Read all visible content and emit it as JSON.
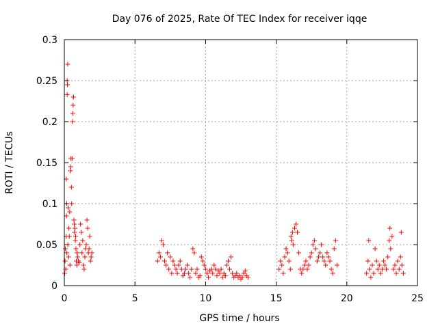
{
  "chart_data": {
    "type": "scatter",
    "title": "Day 076 of 2025, Rate Of TEC Index for receiver iqqe",
    "xlabel": "GPS time / hours",
    "ylabel": "ROTI / TECUs",
    "xlim": [
      0,
      25
    ],
    "ylim": [
      0,
      0.3
    ],
    "xticks": [
      0,
      5,
      10,
      15,
      20,
      25
    ],
    "yticks": [
      0,
      0.05,
      0.1,
      0.15,
      0.2,
      0.25,
      0.3
    ],
    "xtick_labels": [
      "0",
      "5",
      "10",
      "15",
      "20",
      "25"
    ],
    "ytick_labels": [
      "0",
      "0.05",
      "0.1",
      "0.15",
      "0.2",
      "0.25",
      "0.3"
    ],
    "grid": true,
    "marker": "+",
    "color": "#ff0000",
    "series": [
      {
        "points": [
          [
            0.02,
            0.015
          ],
          [
            0.05,
            0.03
          ],
          [
            0.07,
            0.045
          ],
          [
            0.1,
            0.02
          ],
          [
            0.12,
            0.06
          ],
          [
            0.13,
            0.13
          ],
          [
            0.15,
            0.085
          ],
          [
            0.17,
            0.1
          ],
          [
            0.18,
            0.04
          ],
          [
            0.2,
            0.233
          ],
          [
            0.2,
            0.25
          ],
          [
            0.22,
            0.245
          ],
          [
            0.24,
            0.27
          ],
          [
            0.25,
            0.05
          ],
          [
            0.27,
            0.095
          ],
          [
            0.3,
            0.035
          ],
          [
            0.32,
            0.07
          ],
          [
            0.35,
            0.06
          ],
          [
            0.38,
            0.09
          ],
          [
            0.4,
            0.025
          ],
          [
            0.42,
            0.14
          ],
          [
            0.45,
            0.145
          ],
          [
            0.47,
            0.155
          ],
          [
            0.5,
            0.12
          ],
          [
            0.52,
            0.1
          ],
          [
            0.55,
            0.155
          ],
          [
            0.57,
            0.2
          ],
          [
            0.6,
            0.21
          ],
          [
            0.62,
            0.22
          ],
          [
            0.64,
            0.23
          ],
          [
            0.65,
            0.23
          ],
          [
            0.68,
            0.08
          ],
          [
            0.7,
            0.075
          ],
          [
            0.72,
            0.065
          ],
          [
            0.75,
            0.07
          ],
          [
            0.78,
            0.055
          ],
          [
            0.8,
            0.06
          ],
          [
            0.82,
            0.045
          ],
          [
            0.85,
            0.03
          ],
          [
            0.88,
            0.025
          ],
          [
            0.9,
            0.04
          ],
          [
            0.95,
            0.035
          ],
          [
            1.0,
            0.03
          ],
          [
            1.05,
            0.028
          ],
          [
            1.1,
            0.05
          ],
          [
            1.15,
            0.075
          ],
          [
            1.2,
            0.065
          ],
          [
            1.25,
            0.04
          ],
          [
            1.3,
            0.055
          ],
          [
            1.35,
            0.025
          ],
          [
            1.4,
            0.02
          ],
          [
            1.45,
            0.035
          ],
          [
            1.5,
            0.045
          ],
          [
            1.55,
            0.05
          ],
          [
            1.6,
            0.08
          ],
          [
            1.65,
            0.07
          ],
          [
            1.7,
            0.04
          ],
          [
            1.75,
            0.045
          ],
          [
            1.8,
            0.06
          ],
          [
            1.85,
            0.03
          ],
          [
            1.9,
            0.035
          ],
          [
            1.95,
            0.04
          ],
          [
            6.6,
            0.03
          ],
          [
            6.7,
            0.04
          ],
          [
            6.8,
            0.035
          ],
          [
            6.9,
            0.055
          ],
          [
            7.0,
            0.05
          ],
          [
            7.1,
            0.03
          ],
          [
            7.2,
            0.025
          ],
          [
            7.3,
            0.04
          ],
          [
            7.4,
            0.02
          ],
          [
            7.5,
            0.035
          ],
          [
            7.6,
            0.015
          ],
          [
            7.7,
            0.03
          ],
          [
            7.8,
            0.025
          ],
          [
            7.9,
            0.02
          ],
          [
            8.0,
            0.015
          ],
          [
            8.1,
            0.025
          ],
          [
            8.2,
            0.03
          ],
          [
            8.3,
            0.02
          ],
          [
            8.4,
            0.012
          ],
          [
            8.5,
            0.015
          ],
          [
            8.6,
            0.02
          ],
          [
            8.7,
            0.025
          ],
          [
            8.8,
            0.015
          ],
          [
            8.9,
            0.01
          ],
          [
            9.0,
            0.02
          ],
          [
            9.1,
            0.045
          ],
          [
            9.2,
            0.04
          ],
          [
            9.3,
            0.015
          ],
          [
            9.4,
            0.02
          ],
          [
            9.5,
            0.01
          ],
          [
            9.6,
            0.012
          ],
          [
            9.7,
            0.035
          ],
          [
            9.8,
            0.03
          ],
          [
            9.9,
            0.025
          ],
          [
            10.0,
            0.02
          ],
          [
            10.1,
            0.015
          ],
          [
            10.2,
            0.01
          ],
          [
            10.3,
            0.018
          ],
          [
            10.4,
            0.02
          ],
          [
            10.5,
            0.015
          ],
          [
            10.6,
            0.025
          ],
          [
            10.7,
            0.02
          ],
          [
            10.8,
            0.012
          ],
          [
            10.9,
            0.018
          ],
          [
            11.0,
            0.015
          ],
          [
            11.1,
            0.02
          ],
          [
            11.2,
            0.01
          ],
          [
            11.3,
            0.015
          ],
          [
            11.4,
            0.012
          ],
          [
            11.5,
            0.025
          ],
          [
            11.6,
            0.03
          ],
          [
            11.7,
            0.02
          ],
          [
            11.8,
            0.035
          ],
          [
            11.9,
            0.015
          ],
          [
            12.0,
            0.01
          ],
          [
            12.1,
            0.012
          ],
          [
            12.2,
            0.015
          ],
          [
            12.3,
            0.01
          ],
          [
            12.4,
            0.012
          ],
          [
            12.5,
            0.008
          ],
          [
            12.6,
            0.01
          ],
          [
            12.7,
            0.015
          ],
          [
            12.8,
            0.018
          ],
          [
            12.9,
            0.012
          ],
          [
            13.0,
            0.01
          ],
          [
            15.2,
            0.02
          ],
          [
            15.3,
            0.03
          ],
          [
            15.4,
            0.025
          ],
          [
            15.5,
            0.015
          ],
          [
            15.6,
            0.035
          ],
          [
            15.7,
            0.045
          ],
          [
            15.8,
            0.04
          ],
          [
            15.9,
            0.03
          ],
          [
            16.0,
            0.02
          ],
          [
            16.05,
            0.06
          ],
          [
            16.1,
            0.055
          ],
          [
            16.15,
            0.065
          ],
          [
            16.2,
            0.05
          ],
          [
            16.3,
            0.07
          ],
          [
            16.4,
            0.075
          ],
          [
            16.5,
            0.065
          ],
          [
            16.6,
            0.04
          ],
          [
            16.7,
            0.02
          ],
          [
            16.8,
            0.015
          ],
          [
            16.9,
            0.02
          ],
          [
            17.0,
            0.025
          ],
          [
            17.1,
            0.03
          ],
          [
            17.2,
            0.02
          ],
          [
            17.3,
            0.025
          ],
          [
            17.4,
            0.035
          ],
          [
            17.5,
            0.04
          ],
          [
            17.6,
            0.05
          ],
          [
            17.7,
            0.055
          ],
          [
            17.8,
            0.045
          ],
          [
            17.9,
            0.03
          ],
          [
            18.0,
            0.035
          ],
          [
            18.1,
            0.04
          ],
          [
            18.2,
            0.05
          ],
          [
            18.3,
            0.035
          ],
          [
            18.4,
            0.03
          ],
          [
            18.5,
            0.025
          ],
          [
            18.6,
            0.04
          ],
          [
            18.7,
            0.035
          ],
          [
            18.8,
            0.03
          ],
          [
            18.9,
            0.02
          ],
          [
            19.0,
            0.015
          ],
          [
            19.1,
            0.045
          ],
          [
            19.2,
            0.055
          ],
          [
            19.3,
            0.025
          ],
          [
            21.4,
            0.015
          ],
          [
            21.5,
            0.03
          ],
          [
            21.55,
            0.055
          ],
          [
            21.6,
            0.02
          ],
          [
            21.7,
            0.01
          ],
          [
            21.8,
            0.025
          ],
          [
            21.9,
            0.015
          ],
          [
            22.0,
            0.045
          ],
          [
            22.1,
            0.03
          ],
          [
            22.2,
            0.02
          ],
          [
            22.3,
            0.025
          ],
          [
            22.4,
            0.015
          ],
          [
            22.5,
            0.02
          ],
          [
            22.6,
            0.03
          ],
          [
            22.7,
            0.025
          ],
          [
            22.8,
            0.02
          ],
          [
            22.9,
            0.035
          ],
          [
            23.0,
            0.055
          ],
          [
            23.05,
            0.07
          ],
          [
            23.1,
            0.045
          ],
          [
            23.2,
            0.06
          ],
          [
            23.3,
            0.02
          ],
          [
            23.4,
            0.025
          ],
          [
            23.5,
            0.015
          ],
          [
            23.6,
            0.03
          ],
          [
            23.7,
            0.02
          ],
          [
            23.8,
            0.035
          ],
          [
            23.85,
            0.065
          ],
          [
            23.9,
            0.025
          ],
          [
            24.0,
            0.015
          ]
        ]
      }
    ]
  }
}
